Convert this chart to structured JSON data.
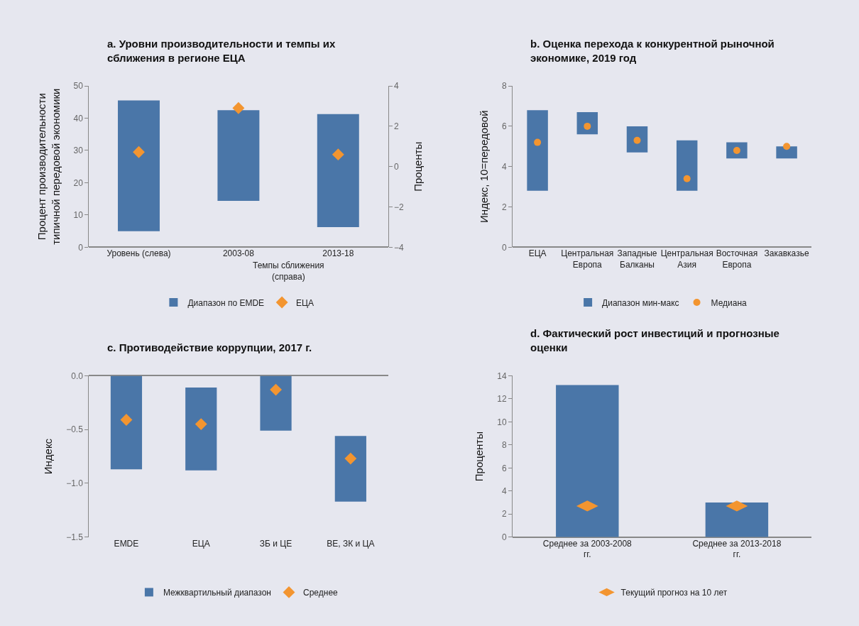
{
  "chart_data": [
    {
      "type": "bar",
      "title": "a. Уровни производительности и темпы их сближения в регионе ЕЦА",
      "ylabel": "Процент производительности типичной передовой экономики",
      "y2label": "Проценты",
      "categories": [
        "Уровень (слева)",
        "2003-08",
        "2013-18"
      ],
      "annotations": [
        "Темпы сближения (справа)"
      ],
      "series": [
        {
          "name": "Диапазон по EMDE",
          "color": "#4a76a8",
          "values": [
            40.5,
            null,
            null
          ],
          "base": [
            5,
            null,
            null
          ]
        },
        {
          "color": "#4a76a8",
          "axis": "y2",
          "values": [
            null,
            4.5,
            5.6
          ],
          "base": [
            null,
            -1.7,
            -3.0
          ]
        },
        {
          "name": "ЕЦА",
          "type": "scatter",
          "color": "#f39530",
          "marker": "diamond",
          "values": [
            29.5,
            null,
            null
          ]
        },
        {
          "type": "scatter",
          "color": "#f39530",
          "marker": "diamond",
          "axis": "y2",
          "values": [
            null,
            2.9,
            0.6
          ]
        }
      ],
      "ylim": [
        0,
        50
      ],
      "yticks": [
        0,
        10,
        20,
        30,
        40,
        50
      ],
      "y2lim": [
        -4,
        4
      ],
      "y2ticks": [
        {
          "value": -4,
          "label": "−4"
        },
        {
          "value": -2,
          "label": "−2"
        },
        0,
        2,
        4
      ],
      "legend": "bottom",
      "grid": false
    },
    {
      "type": "bar",
      "title": "b. Оценка перехода к конкурентной рыночной экономике, 2019 год",
      "ylabel": "Индекс, 10=передовой",
      "categories": [
        "ЕЦА",
        "Центральная Европа",
        "Западные Балканы",
        "Центральная Азия",
        "Восточная Европа",
        "Закавказье"
      ],
      "series": [
        {
          "name": "Диапазон мин-макс",
          "color": "#4a76a8",
          "values": [
            4.0,
            1.1,
            1.3,
            2.5,
            0.8,
            0.6
          ],
          "base": [
            2.8,
            5.6,
            4.7,
            2.8,
            4.4,
            4.4
          ]
        },
        {
          "name": "Медиана",
          "type": "scatter",
          "color": "#f39530",
          "marker": "circle",
          "values": [
            5.2,
            6.0,
            5.3,
            3.4,
            4.8,
            5.0
          ]
        }
      ],
      "ylim": [
        0,
        8
      ],
      "yticks": [
        0,
        2,
        4,
        6,
        8
      ],
      "legend": "bottom",
      "grid": false
    },
    {
      "type": "bar",
      "title": "c. Противодействие коррупции, 2017 г.",
      "ylabel": "Индекс",
      "categories": [
        "EMDE",
        "ЕЦА",
        "ЗБ и ЦЕ",
        "ВЕ, ЗК и ЦА"
      ],
      "series": [
        {
          "name": "Межквартильный диапазон",
          "color": "#4a76a8",
          "values": [
            0.87,
            0.77,
            0.51,
            0.61
          ],
          "base": [
            -0.87,
            -0.88,
            -0.51,
            -1.17
          ]
        },
        {
          "name": "Среднее",
          "type": "scatter",
          "color": "#f39530",
          "marker": "diamond",
          "values": [
            -0.41,
            -0.45,
            -0.13,
            -0.77
          ]
        }
      ],
      "ylim": [
        -1.5,
        0
      ],
      "yticks": [
        {
          "value": 0,
          "label": "0.0"
        },
        {
          "value": -0.5,
          "label": "−0.5"
        },
        {
          "value": -1.0,
          "label": "−1.0"
        },
        {
          "value": -1.5,
          "label": "−1.5"
        }
      ],
      "legend": "bottom",
      "grid": false
    },
    {
      "type": "bar",
      "title": "d. Фактический рост инвестиций и прогнозные оценки",
      "ylabel": "Проценты",
      "categories": [
        "Среднее за 2003-2008 гг.",
        "Среднее за 2013-2018 гг."
      ],
      "series": [
        {
          "color": "#4a76a8",
          "values": [
            13.2,
            3.0
          ]
        },
        {
          "name": "Текущий прогноз на 10 лет",
          "type": "scatter",
          "color": "#f39530",
          "values": [
            2.7,
            2.7
          ]
        }
      ],
      "ylim": [
        0,
        14
      ],
      "yticks": [
        0,
        2,
        4,
        6,
        8,
        10,
        12,
        14
      ],
      "legend": "bottom",
      "grid": false
    }
  ]
}
